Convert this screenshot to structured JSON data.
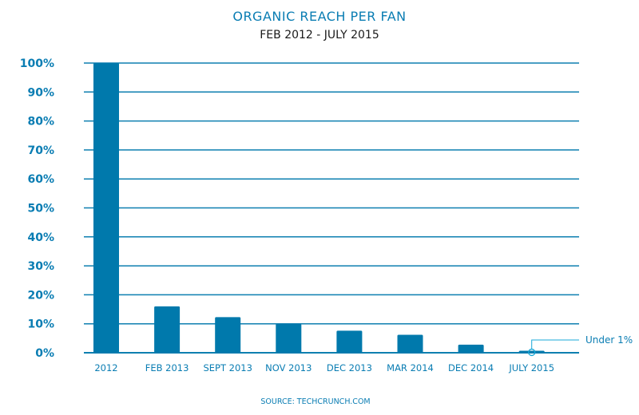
{
  "chart_data": {
    "type": "bar",
    "title": "ORGANIC REACH PER FAN",
    "subtitle": "FEB 2012 - JULY 2015",
    "categories": [
      "2012",
      "FEB 2013",
      "SEPT 2013",
      "NOV 2013",
      "DEC 2013",
      "MAR 2014",
      "DEC 2014",
      "JULY 2015"
    ],
    "values": [
      100,
      16,
      12.3,
      10,
      7.6,
      6.2,
      2.8,
      0.7
    ],
    "ylim": [
      0,
      100
    ],
    "yticks": [
      "0%",
      "10%",
      "20%",
      "30%",
      "40%",
      "50%",
      "60%",
      "70%",
      "80%",
      "90%",
      "100%"
    ],
    "grid": true,
    "annotation": {
      "category": "JULY 2015",
      "text": "Under 1%"
    },
    "source": "SOURCE: TECHCRUNCH.COM",
    "colors": {
      "bar": "#0079ac",
      "grid": "#0e7fb0",
      "text": "#0a7db3"
    }
  }
}
